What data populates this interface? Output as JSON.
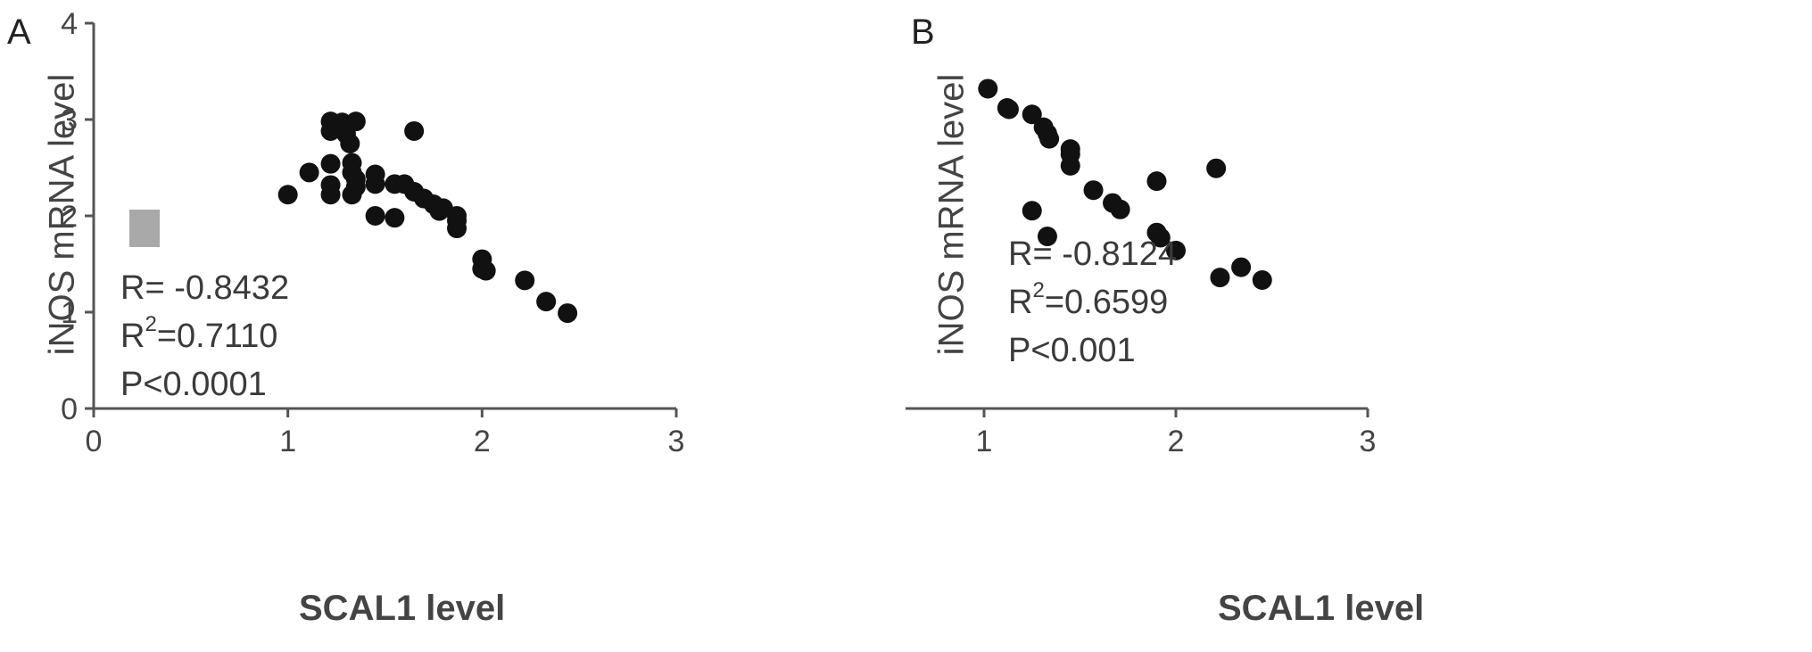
{
  "chart_data": [
    {
      "type": "scatter",
      "panel_label": "A",
      "xlabel": "SCAL1 level",
      "ylabel": "iNOS mRNA level",
      "xlim": [
        0,
        3
      ],
      "ylim": [
        0,
        4
      ],
      "xticks": [
        "0",
        "1",
        "2",
        "3"
      ],
      "yticks": [
        "0",
        "1",
        "2",
        "3",
        "4"
      ],
      "stats": {
        "r": "R= -0.8432",
        "r2_prefix": "R",
        "r2_sup": "2",
        "r2_value": "=0.7110",
        "p": "P<0.0001"
      },
      "legend_marker_color": "#a9a9a9",
      "point_color": "#111111",
      "grid": false,
      "x": [
        1.0,
        1.11,
        1.22,
        1.22,
        1.22,
        1.22,
        1.22,
        1.28,
        1.3,
        1.32,
        1.33,
        1.33,
        1.33,
        1.35,
        1.35,
        1.35,
        1.45,
        1.45,
        1.45,
        1.55,
        1.55,
        1.6,
        1.65,
        1.65,
        1.7,
        1.75,
        1.78,
        1.8,
        1.87,
        1.87,
        1.87,
        2.0,
        2.0,
        2.02,
        2.22,
        2.33,
        2.44
      ],
      "y": [
        2.22,
        2.45,
        2.98,
        2.88,
        2.54,
        2.32,
        2.22,
        2.97,
        2.85,
        2.75,
        2.55,
        2.45,
        2.22,
        2.98,
        2.38,
        2.3,
        2.43,
        2.33,
        2.0,
        2.33,
        1.98,
        2.33,
        2.88,
        2.25,
        2.18,
        2.12,
        2.05,
        2.08,
        2.0,
        1.95,
        1.87,
        1.55,
        1.45,
        1.43,
        1.33,
        1.11,
        0.99
      ]
    },
    {
      "type": "scatter",
      "panel_label": "B",
      "xlabel": "SCAL1 level",
      "ylabel": "iNOS mRNA level",
      "xlim": [
        0,
        3
      ],
      "ylim": [
        0,
        3
      ],
      "xticks": [
        "0",
        "1",
        "2",
        "3"
      ],
      "yticks": [
        "0",
        "1",
        "2",
        "3"
      ],
      "stats": {
        "r": "R= -0.8124",
        "r2_prefix": "R",
        "r2_sup": "2",
        "r2_value": "=0.6599",
        "p": "P<0.001"
      },
      "point_color": "#111111",
      "grid": false,
      "x": [
        1.02,
        1.12,
        1.13,
        1.25,
        1.31,
        1.33,
        1.34,
        1.45,
        1.45,
        1.45,
        1.57,
        1.67,
        1.71,
        1.9,
        1.9,
        1.92,
        2.0,
        2.21,
        2.23,
        2.34,
        2.45,
        1.25,
        1.33
      ],
      "y": [
        2.49,
        2.34,
        2.33,
        2.29,
        2.19,
        2.14,
        2.1,
        2.02,
        1.98,
        1.89,
        1.7,
        1.6,
        1.55,
        1.77,
        1.37,
        1.33,
        1.23,
        1.87,
        1.02,
        1.1,
        1.0,
        1.54,
        1.34
      ]
    }
  ]
}
